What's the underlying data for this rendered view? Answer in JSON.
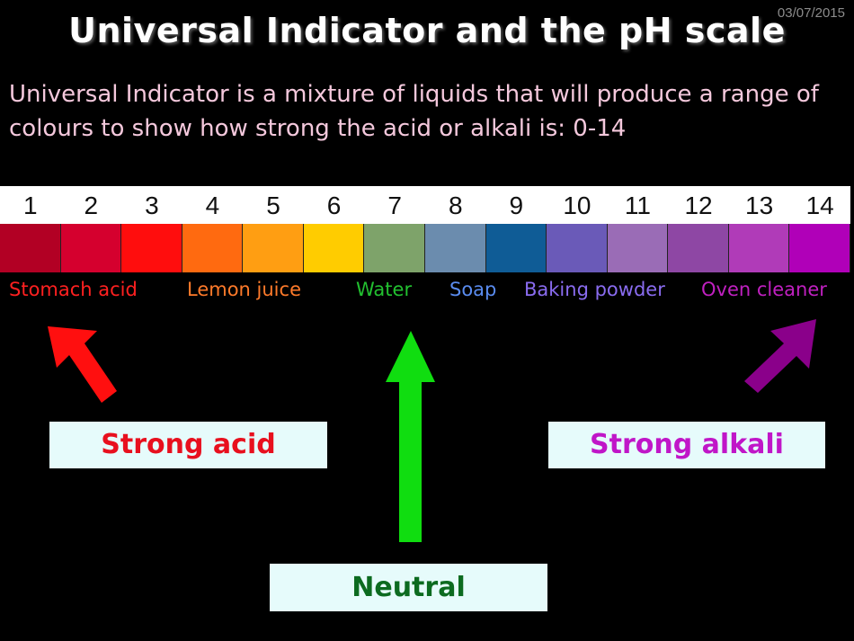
{
  "date": "03/07/2015",
  "title": "Universal Indicator and the pH scale",
  "intro": "Universal Indicator is a mixture of liquids that will produce a range of colours to show how strong the acid or alkali is: 0-14",
  "scale": [
    {
      "ph": "1",
      "color": "#b20024"
    },
    {
      "ph": "2",
      "color": "#d5002e"
    },
    {
      "ph": "3",
      "color": "#ff0d0d"
    },
    {
      "ph": "4",
      "color": "#ff6a10"
    },
    {
      "ph": "5",
      "color": "#ff9e12"
    },
    {
      "ph": "6",
      "color": "#ffcc00"
    },
    {
      "ph": "7",
      "color": "#7ea36a"
    },
    {
      "ph": "8",
      "color": "#6b8cae"
    },
    {
      "ph": "9",
      "color": "#0f5c96"
    },
    {
      "ph": "10",
      "color": "#6a5ab8"
    },
    {
      "ph": "11",
      "color": "#9a6cb6"
    },
    {
      "ph": "12",
      "color": "#8e47a4"
    },
    {
      "ph": "13",
      "color": "#b03bb8"
    },
    {
      "ph": "14",
      "color": "#b000b8"
    }
  ],
  "examples": [
    {
      "label": "Stomach acid",
      "color": "#ff2020"
    },
    {
      "label": "Lemon juice",
      "color": "#ff7a2a"
    },
    {
      "label": "Water",
      "color": "#22c030"
    },
    {
      "label": "Soap",
      "color": "#5a8cf0"
    },
    {
      "label": "Baking powder",
      "color": "#8a6cf0"
    },
    {
      "label": "Oven cleaner",
      "color": "#c020c0"
    }
  ],
  "boxes": {
    "strong_acid": {
      "label": "Strong acid",
      "color": "#e8101e"
    },
    "neutral": {
      "label": "Neutral",
      "color": "#0c6b20"
    },
    "strong_alkali": {
      "label": "Strong alkali",
      "color": "#c016c8"
    }
  },
  "arrow_colors": {
    "acid": "#ff0f0f",
    "neutral": "#10dd10",
    "alkali": "#8a008a"
  }
}
